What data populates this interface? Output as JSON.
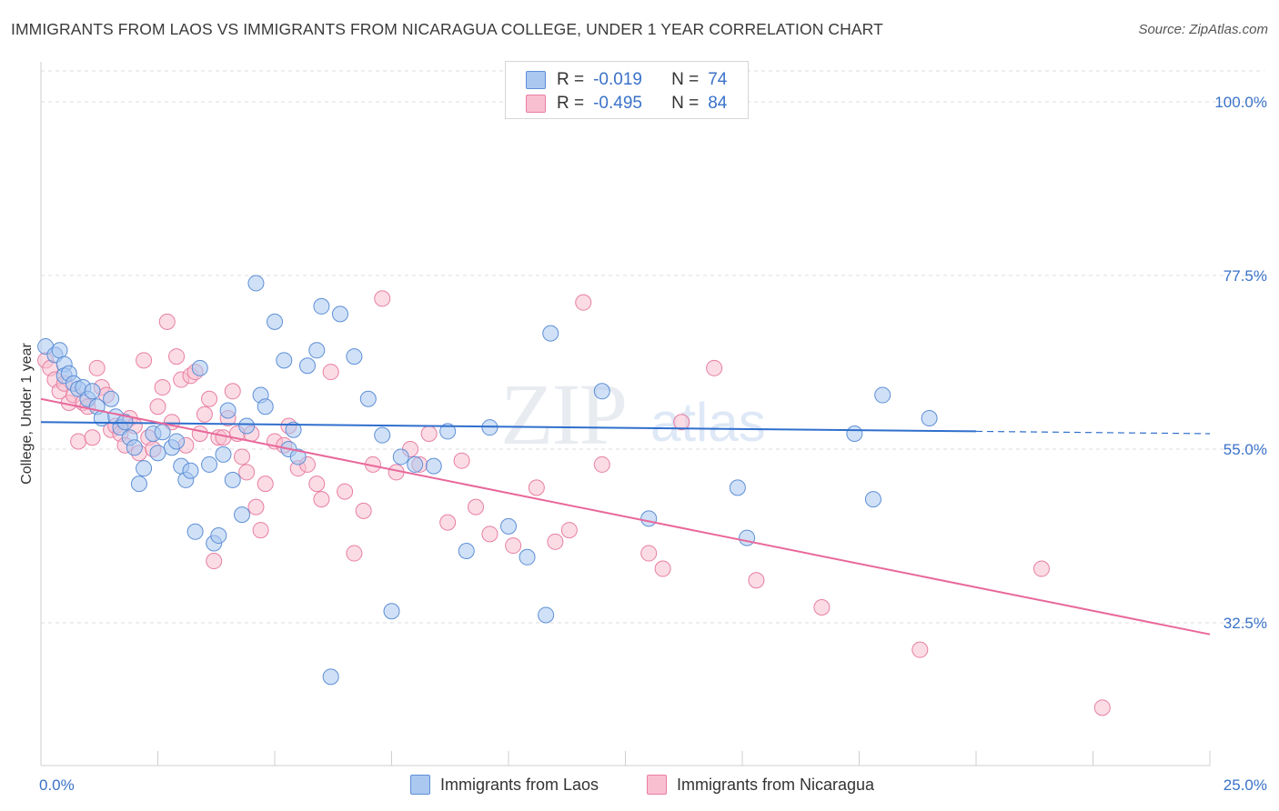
{
  "title": "IMMIGRANTS FROM LAOS VS IMMIGRANTS FROM NICARAGUA COLLEGE, UNDER 1 YEAR CORRELATION CHART",
  "source": "Source: ZipAtlas.com",
  "watermark_a": "ZIP",
  "watermark_b": "atlas",
  "colors": {
    "laos_fill": "#aac8f0",
    "laos_stroke": "#5e8fd6",
    "laos_line": "#2f6fcd",
    "nic_fill": "#f8bfd0",
    "nic_stroke": "#e87fa2",
    "nic_line": "#e8689a",
    "axis_text": "#3a72c9",
    "grid": "#dedede"
  },
  "legend": {
    "laos": {
      "r_label": "R =",
      "r_value": "-0.019",
      "n_label": "N =",
      "n_value": "74"
    },
    "nic": {
      "r_label": "R =",
      "r_value": "-0.495",
      "n_label": "N =",
      "n_value": "84"
    }
  },
  "chart_data": {
    "type": "scatter",
    "title": "IMMIGRANTS FROM LAOS VS IMMIGRANTS FROM NICARAGUA COLLEGE, UNDER 1 YEAR CORRELATION CHART",
    "xlabel": "",
    "ylabel": "College, Under 1 year",
    "xlim": [
      0,
      25
    ],
    "ylim": [
      14,
      104
    ],
    "x_tick_labels": [
      "0.0%",
      "25.0%"
    ],
    "y_ticks": [
      100,
      77.5,
      55,
      32.5
    ],
    "y_tick_labels": [
      "100.0%",
      "77.5%",
      "55.0%",
      "32.5%"
    ],
    "grid": true,
    "legend_position": "top-center",
    "series": [
      {
        "name": "Immigrants from Laos",
        "r": -0.019,
        "n": 74,
        "trend": {
          "x0": 0,
          "y0": 58.5,
          "x1": 20,
          "y1": 57.3,
          "dash_to": 25
        },
        "points": [
          [
            0.1,
            68.3
          ],
          [
            0.3,
            67.2
          ],
          [
            0.4,
            67.8
          ],
          [
            0.5,
            66.0
          ],
          [
            0.5,
            64.5
          ],
          [
            0.6,
            64.8
          ],
          [
            0.7,
            63.5
          ],
          [
            0.8,
            62.8
          ],
          [
            0.9,
            63.0
          ],
          [
            1.0,
            61.5
          ],
          [
            1.1,
            62.5
          ],
          [
            1.2,
            60.5
          ],
          [
            1.3,
            59.0
          ],
          [
            1.5,
            61.5
          ],
          [
            1.6,
            59.2
          ],
          [
            1.7,
            57.8
          ],
          [
            1.8,
            58.5
          ],
          [
            1.9,
            56.5
          ],
          [
            2.0,
            55.2
          ],
          [
            2.1,
            50.5
          ],
          [
            2.2,
            52.5
          ],
          [
            2.4,
            57.0
          ],
          [
            2.5,
            54.5
          ],
          [
            2.6,
            57.2
          ],
          [
            2.8,
            55.2
          ],
          [
            2.9,
            56.0
          ],
          [
            3.0,
            52.8
          ],
          [
            3.1,
            51.0
          ],
          [
            3.2,
            52.2
          ],
          [
            3.3,
            44.3
          ],
          [
            3.4,
            65.5
          ],
          [
            3.6,
            53.0
          ],
          [
            3.7,
            42.8
          ],
          [
            3.8,
            43.8
          ],
          [
            3.9,
            54.3
          ],
          [
            4.0,
            60.0
          ],
          [
            4.1,
            51.0
          ],
          [
            4.3,
            46.5
          ],
          [
            4.4,
            58.0
          ],
          [
            4.6,
            76.5
          ],
          [
            4.7,
            62.0
          ],
          [
            4.8,
            60.5
          ],
          [
            5.0,
            71.5
          ],
          [
            5.2,
            66.5
          ],
          [
            5.3,
            55.0
          ],
          [
            5.4,
            57.5
          ],
          [
            5.5,
            54.0
          ],
          [
            5.7,
            65.8
          ],
          [
            5.9,
            67.8
          ],
          [
            6.0,
            73.5
          ],
          [
            6.2,
            25.5
          ],
          [
            6.4,
            72.5
          ],
          [
            6.7,
            67.0
          ],
          [
            7.0,
            61.5
          ],
          [
            7.3,
            56.8
          ],
          [
            7.5,
            34.0
          ],
          [
            7.7,
            54.0
          ],
          [
            8.0,
            53.0
          ],
          [
            8.4,
            52.8
          ],
          [
            8.7,
            57.3
          ],
          [
            9.1,
            41.8
          ],
          [
            9.6,
            57.8
          ],
          [
            10.0,
            45.0
          ],
          [
            10.4,
            41.0
          ],
          [
            10.8,
            33.5
          ],
          [
            10.9,
            70.0
          ],
          [
            12.0,
            62.5
          ],
          [
            13.0,
            46.0
          ],
          [
            14.9,
            50.0
          ],
          [
            15.1,
            43.5
          ],
          [
            17.4,
            57.0
          ],
          [
            17.8,
            48.5
          ],
          [
            18.0,
            62.0
          ],
          [
            19.0,
            59.0
          ]
        ]
      },
      {
        "name": "Immigrants from Nicaragua",
        "r": -0.495,
        "n": 84,
        "trend": {
          "x0": 0,
          "y0": 61.5,
          "x1": 25,
          "y1": 31.0
        },
        "points": [
          [
            0.1,
            66.5
          ],
          [
            0.2,
            65.5
          ],
          [
            0.3,
            64.0
          ],
          [
            0.4,
            62.5
          ],
          [
            0.5,
            63.5
          ],
          [
            0.6,
            61.0
          ],
          [
            0.7,
            62.0
          ],
          [
            0.8,
            56.0
          ],
          [
            0.9,
            61.0
          ],
          [
            1.0,
            60.5
          ],
          [
            1.1,
            56.5
          ],
          [
            1.2,
            65.5
          ],
          [
            1.3,
            63.0
          ],
          [
            1.4,
            62.0
          ],
          [
            1.5,
            57.5
          ],
          [
            1.6,
            58.0
          ],
          [
            1.7,
            57.0
          ],
          [
            1.8,
            55.5
          ],
          [
            1.9,
            59.0
          ],
          [
            2.0,
            58.0
          ],
          [
            2.1,
            54.5
          ],
          [
            2.2,
            66.5
          ],
          [
            2.3,
            56.5
          ],
          [
            2.4,
            55.0
          ],
          [
            2.5,
            60.5
          ],
          [
            2.6,
            63.0
          ],
          [
            2.7,
            71.5
          ],
          [
            2.8,
            58.5
          ],
          [
            2.9,
            67.0
          ],
          [
            3.0,
            64.0
          ],
          [
            3.1,
            55.5
          ],
          [
            3.2,
            64.5
          ],
          [
            3.3,
            65.0
          ],
          [
            3.4,
            57.0
          ],
          [
            3.5,
            59.5
          ],
          [
            3.6,
            61.5
          ],
          [
            3.7,
            40.5
          ],
          [
            3.8,
            56.5
          ],
          [
            3.9,
            56.5
          ],
          [
            4.0,
            59.0
          ],
          [
            4.1,
            62.5
          ],
          [
            4.2,
            57.0
          ],
          [
            4.3,
            54.0
          ],
          [
            4.4,
            52.0
          ],
          [
            4.5,
            57.0
          ],
          [
            4.6,
            47.5
          ],
          [
            4.7,
            44.5
          ],
          [
            4.8,
            50.5
          ],
          [
            5.0,
            56.0
          ],
          [
            5.2,
            55.5
          ],
          [
            5.3,
            58.0
          ],
          [
            5.5,
            52.5
          ],
          [
            5.7,
            53.0
          ],
          [
            5.9,
            50.5
          ],
          [
            6.0,
            48.5
          ],
          [
            6.2,
            65.0
          ],
          [
            6.5,
            49.5
          ],
          [
            6.7,
            41.5
          ],
          [
            6.9,
            47.0
          ],
          [
            7.1,
            53.0
          ],
          [
            7.3,
            74.5
          ],
          [
            7.6,
            52.0
          ],
          [
            7.9,
            55.0
          ],
          [
            8.1,
            53.0
          ],
          [
            8.3,
            57.0
          ],
          [
            8.7,
            45.5
          ],
          [
            9.0,
            53.5
          ],
          [
            9.3,
            47.5
          ],
          [
            9.6,
            44.0
          ],
          [
            10.1,
            42.5
          ],
          [
            10.6,
            50.0
          ],
          [
            11.0,
            43.0
          ],
          [
            11.3,
            44.5
          ],
          [
            11.6,
            74.0
          ],
          [
            12.0,
            53.0
          ],
          [
            13.0,
            41.5
          ],
          [
            13.3,
            39.5
          ],
          [
            13.7,
            58.5
          ],
          [
            14.4,
            65.5
          ],
          [
            15.3,
            38.0
          ],
          [
            16.7,
            34.5
          ],
          [
            18.8,
            29.0
          ],
          [
            21.4,
            39.5
          ],
          [
            22.7,
            21.5
          ]
        ]
      }
    ]
  }
}
